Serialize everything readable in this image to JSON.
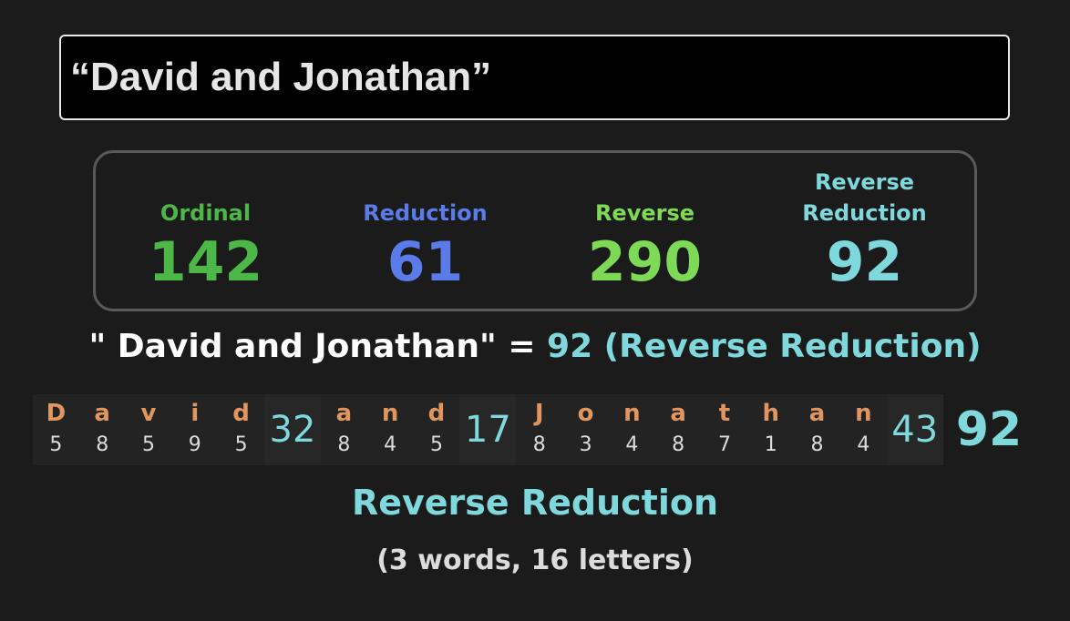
{
  "phrase_title": "“David and Jonathan”",
  "stats": [
    {
      "label": "Ordinal",
      "value": "142",
      "color": "#4db848"
    },
    {
      "label": "Reduction",
      "value": "61",
      "color": "#5b7be8"
    },
    {
      "label": "Reverse",
      "value": "290",
      "color": "#7ed957"
    },
    {
      "label": "Reverse Reduction",
      "value": "92",
      "color": "#7fd8dc"
    }
  ],
  "equation": {
    "phrase": "\" David and Jonathan\" = ",
    "result": "92 (Reverse Reduction)"
  },
  "breakdown": {
    "words": [
      {
        "letters": [
          "D",
          "a",
          "v",
          "i",
          "d"
        ],
        "values": [
          "5",
          "8",
          "5",
          "9",
          "5"
        ],
        "sum": "32"
      },
      {
        "letters": [
          "a",
          "n",
          "d"
        ],
        "values": [
          "8",
          "4",
          "5"
        ],
        "sum": "17"
      },
      {
        "letters": [
          "J",
          "o",
          "n",
          "a",
          "t",
          "h",
          "a",
          "n"
        ],
        "values": [
          "8",
          "3",
          "4",
          "8",
          "7",
          "1",
          "8",
          "4"
        ],
        "sum": "43"
      }
    ],
    "total": "92"
  },
  "cipher_name": "Reverse Reduction",
  "counts": "(3 words, 16 letters)"
}
